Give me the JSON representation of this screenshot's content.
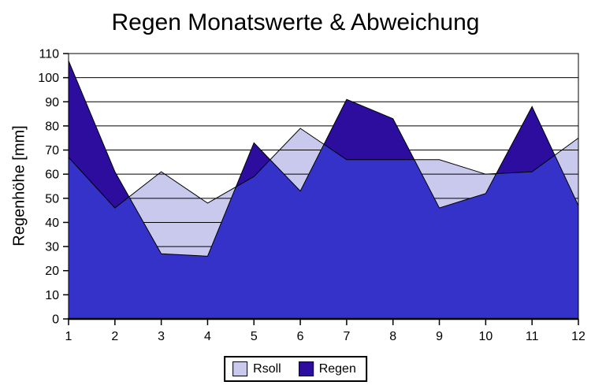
{
  "title": "Regen Monatswerte & Abweichung",
  "chart_data": {
    "type": "area",
    "title": "Regen Monatswerte & Abweichung",
    "ylabel": "Regenhöhe [mm]",
    "xlabel": "",
    "x": [
      1,
      2,
      3,
      4,
      5,
      6,
      7,
      8,
      9,
      10,
      11,
      12
    ],
    "series": [
      {
        "name": "Rsoll",
        "color": "#c9c9ee",
        "values": [
          67,
          46,
          61,
          48,
          59,
          79,
          66,
          66,
          66,
          60,
          61,
          75
        ]
      },
      {
        "name": "Regen",
        "color": "#2c0d9e",
        "values": [
          107,
          61,
          27,
          26,
          73,
          53,
          91,
          83,
          46,
          52,
          88,
          47
        ]
      }
    ],
    "overlap_color": "#3432c8",
    "line_color": "#000000",
    "background": "#ffffff",
    "ylim": [
      0,
      110
    ],
    "yticks": [
      0,
      10,
      20,
      30,
      40,
      50,
      60,
      70,
      80,
      90,
      100,
      110
    ],
    "xticks": [
      1,
      2,
      3,
      4,
      5,
      6,
      7,
      8,
      9,
      10,
      11,
      12
    ],
    "grid": true,
    "legend_position": "bottom"
  }
}
